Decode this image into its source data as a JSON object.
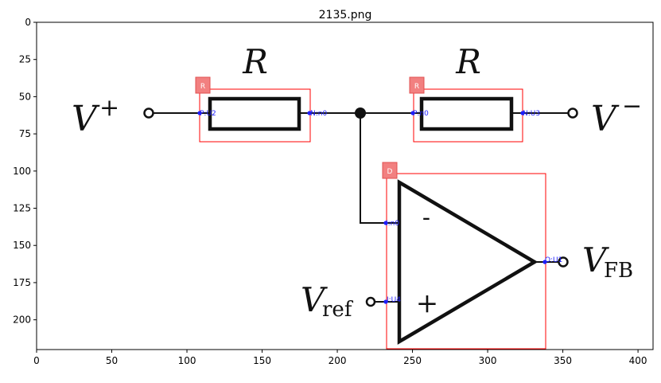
{
  "title": "2135.png",
  "axes": {
    "x_ticks": [
      "0",
      "50",
      "100",
      "150",
      "200",
      "250",
      "300",
      "350",
      "400"
    ],
    "y_ticks": [
      "0",
      "25",
      "50",
      "75",
      "100",
      "125",
      "150",
      "175",
      "200"
    ]
  },
  "schematic": {
    "labels": {
      "r_left": "R",
      "r_right": "R",
      "v_plus": "V",
      "v_plus_sup": "+",
      "v_minus": "V",
      "v_minus_sup": "−",
      "v_ref": "V",
      "v_ref_sub": "ref",
      "v_fb": "V",
      "v_fb_sub": "FB",
      "minus_sign": "-",
      "plus_sign": "+"
    }
  },
  "annotations": {
    "boxes": [
      {
        "badge": "R",
        "pins": [
          "P:U2",
          "N:n0"
        ]
      },
      {
        "badge": "R",
        "pins": [
          "P:n0",
          "N:U3"
        ]
      },
      {
        "badge": "D",
        "pins": [
          "I:n0",
          "O:U1",
          "I:U4"
        ]
      }
    ],
    "colors": {
      "box": "#ff0000",
      "badge": "#f28080",
      "pin": "#1f1fff"
    }
  }
}
